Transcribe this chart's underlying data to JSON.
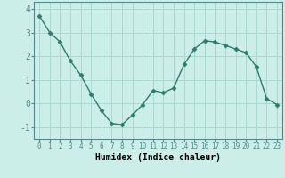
{
  "x": [
    0,
    1,
    2,
    3,
    4,
    5,
    6,
    7,
    8,
    9,
    10,
    11,
    12,
    13,
    14,
    15,
    16,
    17,
    18,
    19,
    20,
    21,
    22,
    23
  ],
  "y": [
    3.7,
    3.0,
    2.6,
    1.8,
    1.2,
    0.4,
    -0.3,
    -0.85,
    -0.9,
    -0.5,
    -0.05,
    0.55,
    0.45,
    0.65,
    1.65,
    2.3,
    2.65,
    2.6,
    2.45,
    2.3,
    2.15,
    1.55,
    0.2,
    -0.05
  ],
  "line_color": "#2d7d6e",
  "marker": "D",
  "markersize": 2.5,
  "linewidth": 1.0,
  "bg_color": "#cceee8",
  "grid_color": "#aad8d0",
  "xlabel": "Humidex (Indice chaleur)",
  "xlim": [
    -0.5,
    23.5
  ],
  "ylim": [
    -1.5,
    4.3
  ],
  "yticks": [
    -1,
    0,
    1,
    2,
    3,
    4
  ],
  "xticks": [
    0,
    1,
    2,
    3,
    4,
    5,
    6,
    7,
    8,
    9,
    10,
    11,
    12,
    13,
    14,
    15,
    16,
    17,
    18,
    19,
    20,
    21,
    22,
    23
  ],
  "xlabel_fontsize": 7,
  "ytick_fontsize": 7,
  "xtick_fontsize": 5.5
}
